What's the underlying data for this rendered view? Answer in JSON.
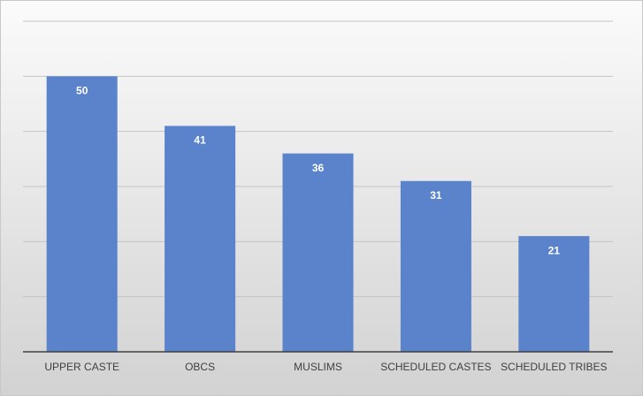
{
  "chart_data": {
    "type": "bar",
    "categories": [
      "UPPER CASTE",
      "OBCS",
      "MUSLIMS",
      "SCHEDULED CASTES",
      "SCHEDULED TRIBES"
    ],
    "values": [
      50,
      41,
      36,
      31,
      21
    ],
    "color": "#5b83cc",
    "ylim": [
      0,
      60
    ],
    "yticks": [
      0,
      10,
      20,
      30,
      40,
      50,
      60
    ],
    "grid": true
  }
}
